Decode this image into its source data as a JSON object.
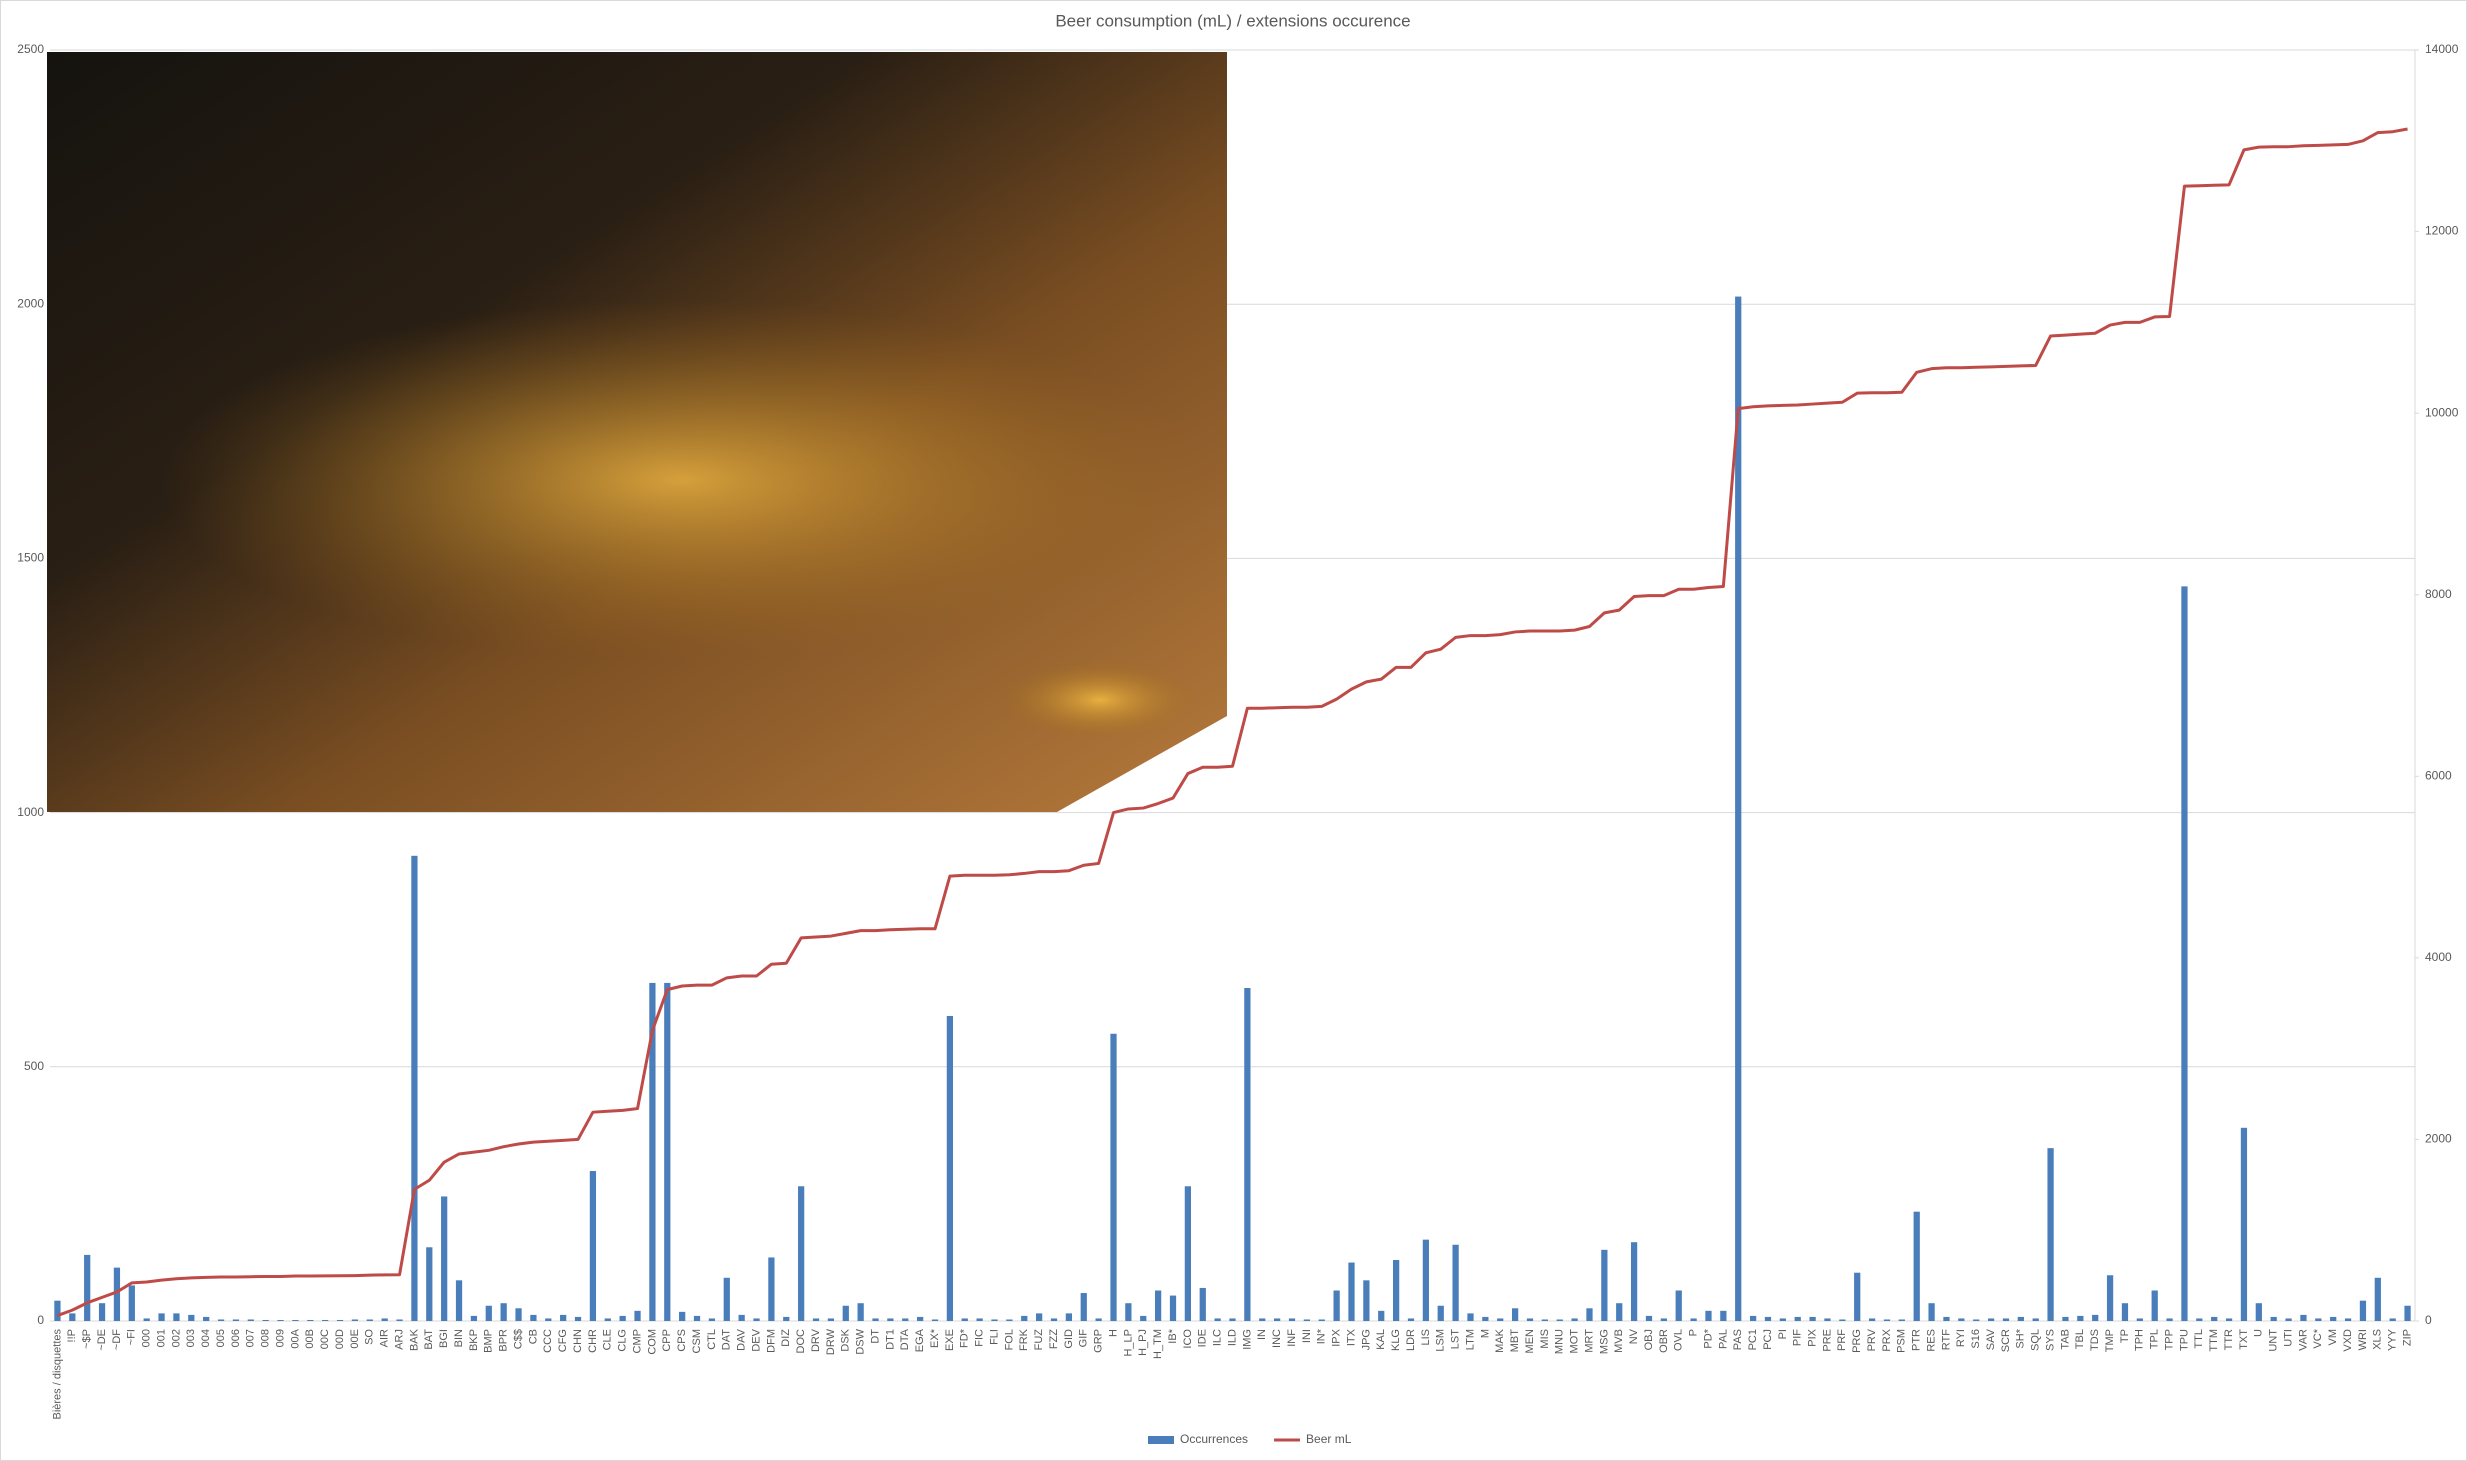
{
  "chart_data": {
    "type": "bar",
    "title": "Beer consumption (mL) / extensions occurence",
    "categories": [
      "Bières / disquettes",
      "!!P",
      "~$P",
      "~DE",
      "~DF",
      "~FI",
      "000",
      "001",
      "002",
      "003",
      "004",
      "005",
      "006",
      "007",
      "008",
      "009",
      "00A",
      "00B",
      "00C",
      "00D",
      "00E",
      "SO",
      "AIR",
      "ARJ",
      "BAK",
      "BAT",
      "BGI",
      "BIN",
      "BKP",
      "BMP",
      "BPR",
      "C$$",
      "CB",
      "CCC",
      "CFG",
      "CHN",
      "CHR",
      "CLE",
      "CLG",
      "CMP",
      "COM",
      "CPP",
      "CPS",
      "CSM",
      "CTL",
      "DAT",
      "DAV",
      "DEV",
      "DFM",
      "DIZ",
      "DOC",
      "DRV",
      "DRW",
      "DSK",
      "DSW",
      "DT",
      "DT1",
      "DTA",
      "EGA",
      "EX*",
      "EXE",
      "FD*",
      "FIC",
      "FLI",
      "FOL",
      "FRK",
      "FUZ",
      "FZZ",
      "GID",
      "GIF",
      "GRP",
      "H",
      "H_LP",
      "H_PJ",
      "H_TM",
      "IB*",
      "ICO",
      "IDE",
      "ILC",
      "ILD",
      "IMG",
      "IN",
      "INC",
      "INF",
      "INI",
      "IN*",
      "IPX",
      "ITX",
      "JPG",
      "KAL",
      "KLG",
      "LDR",
      "LIS",
      "LSM",
      "LST",
      "LTM",
      "M",
      "MAK",
      "MBT",
      "MEN",
      "MIS",
      "MNU",
      "MOT",
      "MRT",
      "MSG",
      "MVB",
      "NV",
      "OBJ",
      "OBR",
      "OVL",
      "P",
      "PD*",
      "PAL",
      "PAS",
      "PC1",
      "PCJ",
      "PI",
      "PIF",
      "PIX",
      "PRE",
      "PRF",
      "PRG",
      "PRV",
      "PRX",
      "PSM",
      "PTR",
      "RES",
      "RTF",
      "RYI",
      "S16",
      "SAV",
      "SCR",
      "SH*",
      "SQL",
      "SYS",
      "TAB",
      "TBL",
      "TDS",
      "TMP",
      "TP",
      "TPH",
      "TPL",
      "TPP",
      "TPU",
      "TTL",
      "TTM",
      "TTR",
      "TXT",
      "U",
      "UNT",
      "UTI",
      "VAR",
      "VC*",
      "VM",
      "VXD",
      "WRI",
      "XLS",
      "YYY",
      "ZIP"
    ],
    "series": [
      {
        "name": "Occurrences",
        "type": "bar",
        "color": "#4a7ebb",
        "values": [
          40,
          15,
          130,
          35,
          105,
          70,
          5,
          15,
          15,
          12,
          8,
          3,
          3,
          3,
          2,
          2,
          2,
          2,
          2,
          2,
          3,
          3,
          5,
          3,
          915,
          145,
          245,
          80,
          10,
          30,
          35,
          25,
          12,
          5,
          12,
          8,
          295,
          5,
          10,
          20,
          665,
          665,
          18,
          10,
          5,
          85,
          12,
          5,
          125,
          8,
          265,
          5,
          5,
          30,
          35,
          5,
          5,
          5,
          8,
          3,
          600,
          5,
          5,
          3,
          3,
          10,
          15,
          5,
          15,
          55,
          5,
          565,
          35,
          10,
          60,
          50,
          265,
          65,
          5,
          5,
          655,
          5,
          5,
          5,
          3,
          3,
          60,
          115,
          80,
          20,
          120,
          5,
          160,
          30,
          150,
          15,
          8,
          5,
          25,
          5,
          3,
          3,
          5,
          25,
          140,
          35,
          155,
          10,
          5,
          60,
          5,
          20,
          20,
          2015,
          10,
          8,
          5,
          8,
          8,
          5,
          3,
          95,
          5,
          3,
          3,
          215,
          35,
          8,
          5,
          3,
          5,
          5,
          8,
          5,
          340,
          8,
          10,
          12,
          90,
          35,
          5,
          60,
          5,
          1445,
          5,
          8,
          5,
          380,
          35,
          8,
          5,
          12,
          5,
          8,
          5,
          40,
          85,
          5,
          30
        ]
      },
      {
        "name": "Beer mL",
        "type": "line",
        "axis": "y2",
        "color": "#be4b48",
        "values": [
          60,
          120,
          200,
          260,
          320,
          420,
          430,
          450,
          465,
          475,
          480,
          485,
          485,
          488,
          490,
          490,
          495,
          495,
          497,
          498,
          500,
          505,
          508,
          510,
          1450,
          1550,
          1750,
          1840,
          1860,
          1880,
          1920,
          1950,
          1970,
          1980,
          1990,
          2000,
          2300,
          2310,
          2320,
          2340,
          3200,
          3650,
          3690,
          3700,
          3700,
          3780,
          3800,
          3800,
          3930,
          3940,
          4220,
          4230,
          4240,
          4270,
          4300,
          4300,
          4310,
          4315,
          4320,
          4320,
          4900,
          4910,
          4910,
          4910,
          4915,
          4930,
          4950,
          4950,
          4960,
          5020,
          5040,
          5600,
          5640,
          5650,
          5700,
          5760,
          6030,
          6100,
          6100,
          6110,
          6750,
          6750,
          6755,
          6760,
          6760,
          6770,
          6850,
          6960,
          7040,
          7070,
          7200,
          7200,
          7360,
          7400,
          7530,
          7550,
          7550,
          7560,
          7590,
          7600,
          7600,
          7600,
          7610,
          7650,
          7800,
          7830,
          7980,
          7990,
          7990,
          8060,
          8060,
          8080,
          8090,
          10050,
          10070,
          10080,
          10085,
          10090,
          10100,
          10110,
          10120,
          10220,
          10225,
          10225,
          10230,
          10450,
          10490,
          10500,
          10500,
          10505,
          10510,
          10515,
          10520,
          10525,
          10850,
          10860,
          10870,
          10880,
          10970,
          11000,
          11000,
          11060,
          11065,
          12500,
          12505,
          12510,
          12515,
          12900,
          12930,
          12935,
          12935,
          12945,
          12950,
          12955,
          12960,
          13000,
          13090,
          13100,
          13130
        ]
      }
    ],
    "ylim": [
      0,
      2500
    ],
    "yticks": [
      0,
      500,
      1000,
      1500,
      2000,
      2500
    ],
    "y2lim": [
      0,
      14000
    ],
    "y2ticks": [
      0,
      2000,
      4000,
      6000,
      8000,
      10000,
      12000,
      14000
    ],
    "grid": true,
    "legend": "bottom"
  }
}
